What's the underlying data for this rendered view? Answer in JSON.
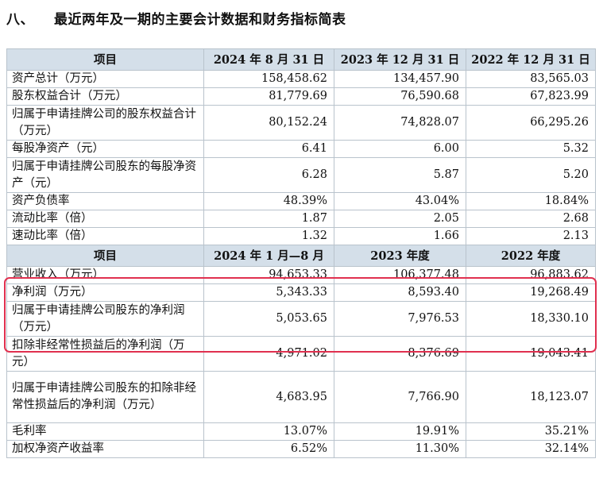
{
  "heading": {
    "number": "八、",
    "title": "最近两年及一期的主要会计数据和财务指标简表"
  },
  "table1": {
    "headers": [
      "项目",
      "2024 年 8 月 31 日",
      "2023 年 12 月 31 日",
      "2022 年 12 月 31 日"
    ],
    "rows": [
      {
        "label": "资产总计（万元）",
        "values": [
          "158,458.62",
          "134,457.90",
          "83,565.03"
        ]
      },
      {
        "label": "股东权益合计（万元）",
        "values": [
          "81,779.69",
          "76,590.68",
          "67,823.99"
        ]
      },
      {
        "label": "归属于申请挂牌公司的股东权益合计（万元）",
        "values": [
          "80,152.24",
          "74,828.07",
          "66,295.26"
        ]
      },
      {
        "label": "每股净资产（元）",
        "values": [
          "6.41",
          "6.00",
          "5.32"
        ]
      },
      {
        "label": "归属于申请挂牌公司股东的每股净资产（元）",
        "values": [
          "6.28",
          "5.87",
          "5.20"
        ]
      },
      {
        "label": "资产负债率",
        "values": [
          "48.39%",
          "43.04%",
          "18.84%"
        ]
      },
      {
        "label": "流动比率（倍）",
        "values": [
          "1.87",
          "2.05",
          "2.68"
        ]
      },
      {
        "label": "速动比率（倍）",
        "values": [
          "1.32",
          "1.66",
          "2.13"
        ]
      }
    ]
  },
  "table2": {
    "headers": [
      "项目",
      "2024 年 1 月—8 月",
      "2023 年度",
      "2022 年度"
    ],
    "rows": [
      {
        "label": "营业收入（万元）",
        "values": [
          "94,653.33",
          "106,377.48",
          "96,883.62"
        ]
      },
      {
        "label": "净利润（万元）",
        "values": [
          "5,343.33",
          "8,593.40",
          "19,268.49"
        ]
      },
      {
        "label": "归属于申请挂牌公司股东的净利润（万元）",
        "values": [
          "5,053.65",
          "7,976.53",
          "18,330.10"
        ]
      },
      {
        "label": "扣除非经常性损益后的净利润（万元）",
        "values": [
          "4,971.02",
          "8,376.69",
          "19,043.41"
        ]
      },
      {
        "label": "归属于申请挂牌公司股东的扣除非经常性损益后的净利润（万元）",
        "values": [
          "4,683.95",
          "7,766.90",
          "18,123.07"
        ]
      },
      {
        "label": "毛利率",
        "values": [
          "13.07%",
          "19.91%",
          "35.21%"
        ]
      },
      {
        "label": "加权净资产收益率",
        "values": [
          "6.52%",
          "11.30%",
          "32.14%"
        ]
      }
    ]
  },
  "highlight_color": "#e0304f",
  "header_bg": "#d4dfe9"
}
